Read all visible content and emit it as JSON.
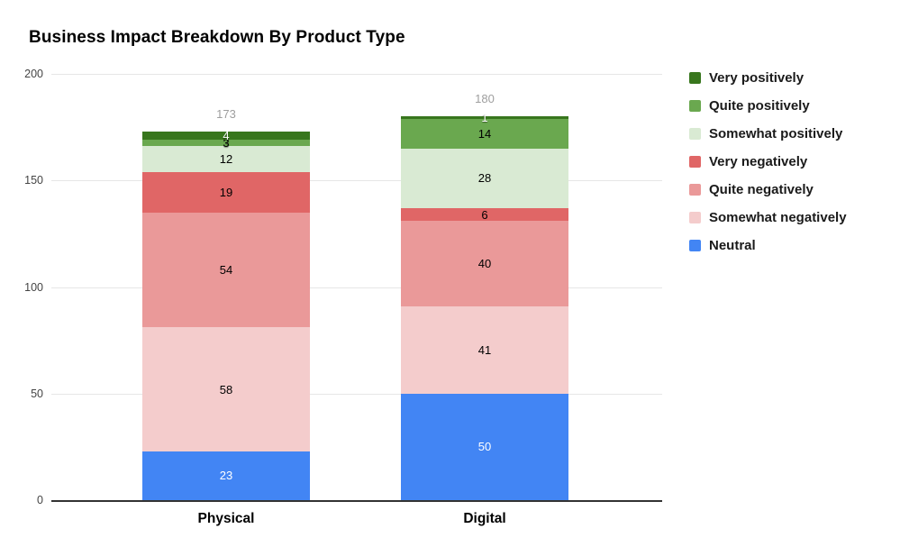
{
  "chart_data": {
    "type": "bar",
    "stacked": true,
    "title": "Business Impact Breakdown By Product Type",
    "categories": [
      "Physical",
      "Digital"
    ],
    "totals": [
      "173",
      "180"
    ],
    "ylim": [
      0,
      200
    ],
    "yticks": [
      0,
      50,
      100,
      150,
      200
    ],
    "grid": true,
    "legend_position": "right",
    "stack_order": "bottom-to-top",
    "series": [
      {
        "name": "Neutral",
        "color": "#4285f4",
        "label_color": "#ffffff",
        "values": [
          23,
          50
        ]
      },
      {
        "name": "Somewhat negatively",
        "color": "#f4cccc",
        "label_color": "#000000",
        "values": [
          58,
          41
        ]
      },
      {
        "name": "Quite negatively",
        "color": "#ea9999",
        "label_color": "#000000",
        "values": [
          54,
          40
        ]
      },
      {
        "name": "Very negatively",
        "color": "#e06666",
        "label_color": "#000000",
        "values": [
          19,
          6
        ]
      },
      {
        "name": "Somewhat positively",
        "color": "#d9ead3",
        "label_color": "#000000",
        "values": [
          12,
          28
        ]
      },
      {
        "name": "Quite positively",
        "color": "#6aa84f",
        "label_color": "#000000",
        "values": [
          3,
          14
        ]
      },
      {
        "name": "Very positively",
        "color": "#38761d",
        "label_color": "#ffffff",
        "values": [
          4,
          1
        ]
      }
    ],
    "legend_top_to_bottom": [
      "Very positively",
      "Quite positively",
      "Somewhat positively",
      "Very negatively",
      "Quite negatively",
      "Somewhat negatively",
      "Neutral"
    ]
  },
  "colors": {
    "background": "#ffffff",
    "gridline": "#e6e6e6",
    "axis_line": "#333333",
    "total_label": "#9e9e9e",
    "tick_label": "#444444",
    "category_label": "#000000",
    "legend_text": "#1a1a1a"
  }
}
